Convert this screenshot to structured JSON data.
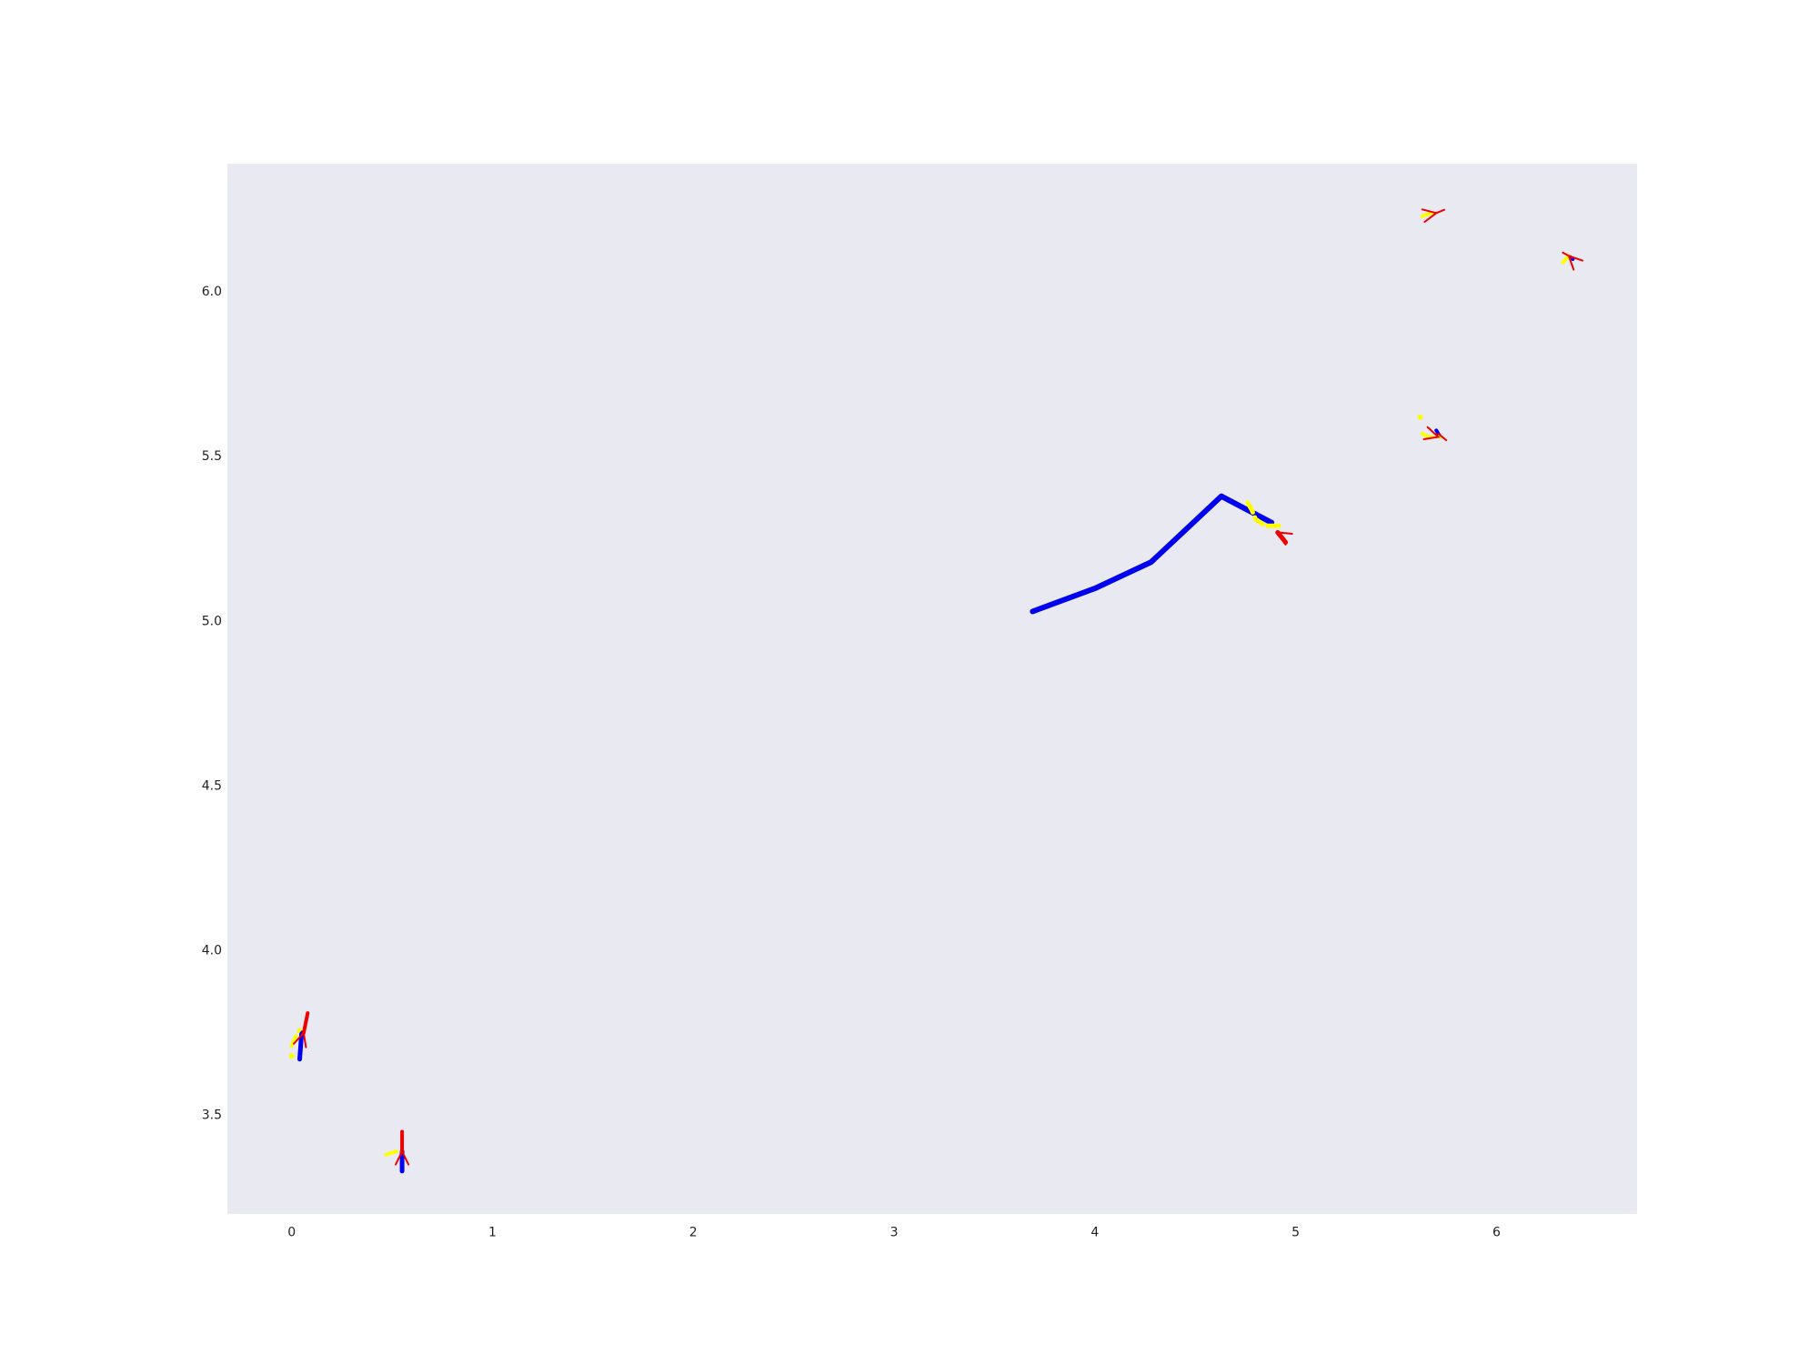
{
  "chart_data": {
    "type": "line",
    "title": "",
    "xlabel": "",
    "ylabel": "",
    "xlim": [
      -0.32,
      6.7
    ],
    "ylim": [
      3.2,
      6.39
    ],
    "grid": false,
    "background": "#e9e9f1",
    "x_ticks": [
      0,
      1,
      2,
      3,
      4,
      5,
      6
    ],
    "x_tick_labels": [
      "0",
      "1",
      "2",
      "3",
      "4",
      "5",
      "6"
    ],
    "y_ticks": [
      3.5,
      4.0,
      4.5,
      5.0,
      5.5,
      6.0
    ],
    "y_tick_labels": [
      "3.5",
      "4.0",
      "4.5",
      "5.0",
      "5.5",
      "6.0"
    ],
    "colors": {
      "history": "#0000ee",
      "prediction": "#ffff00",
      "ground_truth": "#ee0000"
    },
    "series": [
      {
        "role": "history",
        "color": "#0000ee",
        "width": 6,
        "x": [
          3.69,
          4.0,
          4.28,
          4.63,
          4.88
        ],
        "y": [
          5.03,
          5.1,
          5.18,
          5.38,
          5.3
        ]
      },
      {
        "role": "prediction",
        "color": "#ffff00",
        "width": 5,
        "x": [
          4.76,
          4.78,
          4.8,
          4.85,
          4.92
        ],
        "y": [
          5.36,
          5.34,
          5.31,
          5.29,
          5.29
        ]
      },
      {
        "role": "ground_truth",
        "color": "#ee0000",
        "width": 5,
        "x": [
          4.91,
          4.95
        ],
        "y": [
          5.27,
          5.24
        ]
      },
      {
        "role": "history",
        "color": "#0000ee",
        "width": 5,
        "x": [
          0.04,
          0.05
        ],
        "y": [
          3.67,
          3.75
        ]
      },
      {
        "role": "prediction",
        "color": "#ffff00",
        "width": 4,
        "x": [
          0.0,
          0.02,
          0.04
        ],
        "y": [
          3.71,
          3.74,
          3.76
        ]
      },
      {
        "role": "ground_truth",
        "color": "#ee0000",
        "width": 4,
        "x": [
          0.06,
          0.08
        ],
        "y": [
          3.75,
          3.81
        ]
      },
      {
        "role": "history",
        "color": "#0000ee",
        "width": 5,
        "x": [
          0.55,
          0.55
        ],
        "y": [
          3.33,
          3.39
        ]
      },
      {
        "role": "prediction",
        "color": "#ffff00",
        "width": 4,
        "x": [
          0.47,
          0.52,
          0.55
        ],
        "y": [
          3.38,
          3.39,
          3.39
        ]
      },
      {
        "role": "ground_truth",
        "color": "#ee0000",
        "width": 4,
        "x": [
          0.55,
          0.55
        ],
        "y": [
          3.39,
          3.45
        ]
      },
      {
        "role": "history",
        "color": "#0000ee",
        "width": 4,
        "x": [
          5.7,
          5.72
        ],
        "y": [
          5.58,
          5.56
        ]
      },
      {
        "role": "prediction",
        "color": "#ffff00",
        "width": 4,
        "x": [
          5.63,
          5.66,
          5.72
        ],
        "y": [
          5.57,
          5.56,
          5.56
        ]
      },
      {
        "role": "ground_truth",
        "color": "#ee0000",
        "width": 2,
        "x": [
          5.71,
          5.75
        ],
        "y": [
          5.57,
          5.55
        ]
      },
      {
        "role": "prediction",
        "color": "#ffff00",
        "width": 4,
        "x": [
          5.63,
          5.67,
          5.7
        ],
        "y": [
          6.23,
          6.24,
          6.24
        ]
      },
      {
        "role": "ground_truth",
        "color": "#ee0000",
        "width": 2,
        "x": [
          5.7,
          5.74
        ],
        "y": [
          6.24,
          6.25
        ]
      },
      {
        "role": "history",
        "color": "#0000ee",
        "width": 4,
        "x": [
          6.36,
          6.38
        ],
        "y": [
          6.11,
          6.1
        ]
      },
      {
        "role": "prediction",
        "color": "#ffff00",
        "width": 4,
        "x": [
          6.33,
          6.36
        ],
        "y": [
          6.09,
          6.11
        ]
      },
      {
        "role": "ground_truth",
        "color": "#ee0000",
        "width": 2,
        "x": [
          6.33,
          6.36
        ],
        "y": [
          6.12,
          6.11
        ]
      }
    ],
    "points": [
      {
        "role": "prediction",
        "color": "#ffff00",
        "x": 0.0,
        "y": 3.68
      },
      {
        "role": "prediction",
        "color": "#ffff00",
        "x": 5.62,
        "y": 5.62
      }
    ],
    "arrow_heads": [
      {
        "color": "#ee0000",
        "x": 4.91,
        "y": 5.27,
        "dir": [
          -1,
          0.6
        ]
      },
      {
        "color": "#ee0000",
        "x": 0.06,
        "y": 3.75,
        "dir": [
          0.3,
          1
        ]
      },
      {
        "color": "#ee0000",
        "x": 0.55,
        "y": 3.39,
        "dir": [
          0,
          1
        ]
      },
      {
        "color": "#ee0000",
        "x": 5.71,
        "y": 5.56,
        "dir": [
          1,
          -0.3
        ]
      },
      {
        "color": "#ee0000",
        "x": 5.7,
        "y": 6.24,
        "dir": [
          1,
          0.2
        ]
      },
      {
        "color": "#ee0000",
        "x": 6.36,
        "y": 6.11,
        "dir": [
          -0.6,
          0.6
        ]
      }
    ]
  }
}
